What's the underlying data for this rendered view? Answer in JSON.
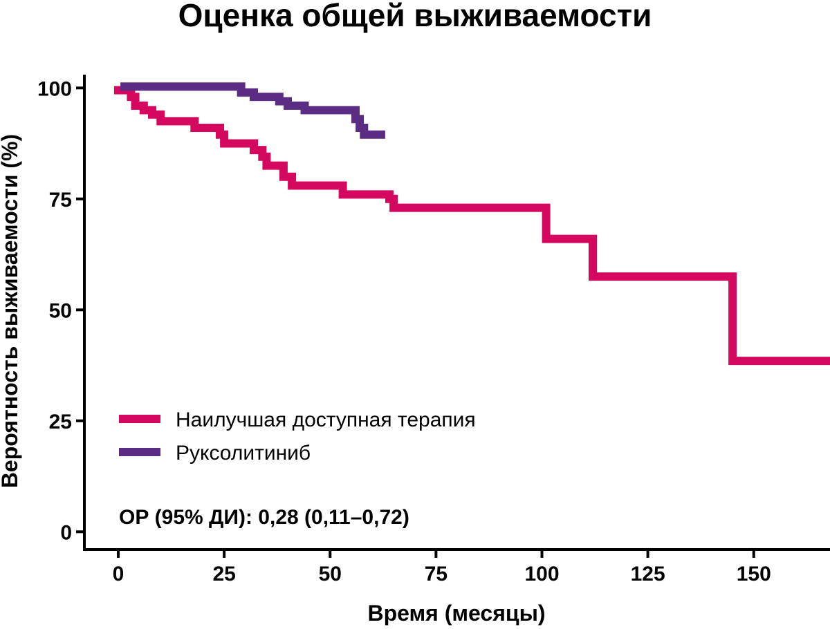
{
  "chart_data": {
    "type": "line",
    "step": true,
    "title": "Оценка общей выживаемости",
    "xlabel": "Время (месяцы)",
    "ylabel": "Вероятность выживаемости (%)",
    "xlim": [
      -8,
      168
    ],
    "ylim": [
      -4,
      103
    ],
    "x_ticks": [
      0,
      25,
      50,
      75,
      100,
      125,
      150
    ],
    "y_ticks": [
      0,
      25,
      50,
      75,
      100
    ],
    "grid": false,
    "legend_position": "lower-left",
    "series": [
      {
        "name": "Наилучшая доступная терапия",
        "color": "#d4085f",
        "points": [
          [
            -1,
            99.5
          ],
          [
            3,
            99.5
          ],
          [
            3,
            98
          ],
          [
            4,
            98
          ],
          [
            4,
            96
          ],
          [
            6,
            96
          ],
          [
            6,
            95
          ],
          [
            8,
            95
          ],
          [
            8,
            94
          ],
          [
            10,
            94
          ],
          [
            10,
            92.5
          ],
          [
            18,
            92.5
          ],
          [
            18,
            91
          ],
          [
            24,
            91
          ],
          [
            24,
            89.5
          ],
          [
            25,
            89.5
          ],
          [
            25,
            87.5
          ],
          [
            32,
            87.5
          ],
          [
            32,
            86
          ],
          [
            34,
            86
          ],
          [
            34,
            84.5
          ],
          [
            35,
            84.5
          ],
          [
            35,
            82.5
          ],
          [
            39,
            82.5
          ],
          [
            39,
            80
          ],
          [
            41,
            80
          ],
          [
            41,
            78
          ],
          [
            53,
            78
          ],
          [
            53,
            76
          ],
          [
            64,
            76
          ],
          [
            64,
            75
          ],
          [
            65,
            75
          ],
          [
            65,
            73
          ],
          [
            101,
            73
          ],
          [
            101,
            66
          ],
          [
            112,
            66
          ],
          [
            112,
            57.5
          ],
          [
            145,
            57.5
          ],
          [
            145,
            38.5
          ],
          [
            168,
            38.5
          ]
        ]
      },
      {
        "name": "Руксолитиниб",
        "color": "#5b2c83",
        "points": [
          [
            0.5,
            100.3
          ],
          [
            29,
            100.3
          ],
          [
            29,
            99
          ],
          [
            32,
            99
          ],
          [
            32,
            98
          ],
          [
            38,
            98
          ],
          [
            38,
            97
          ],
          [
            40,
            97
          ],
          [
            40,
            96
          ],
          [
            44,
            96
          ],
          [
            44,
            95
          ],
          [
            56,
            95
          ],
          [
            56,
            93
          ],
          [
            57,
            93
          ],
          [
            57,
            91
          ],
          [
            58,
            91
          ],
          [
            58,
            89.5
          ],
          [
            63,
            89.5
          ]
        ]
      }
    ],
    "annotation": "ОР (95% ДИ): 0,28 (0,11–0,72)"
  }
}
